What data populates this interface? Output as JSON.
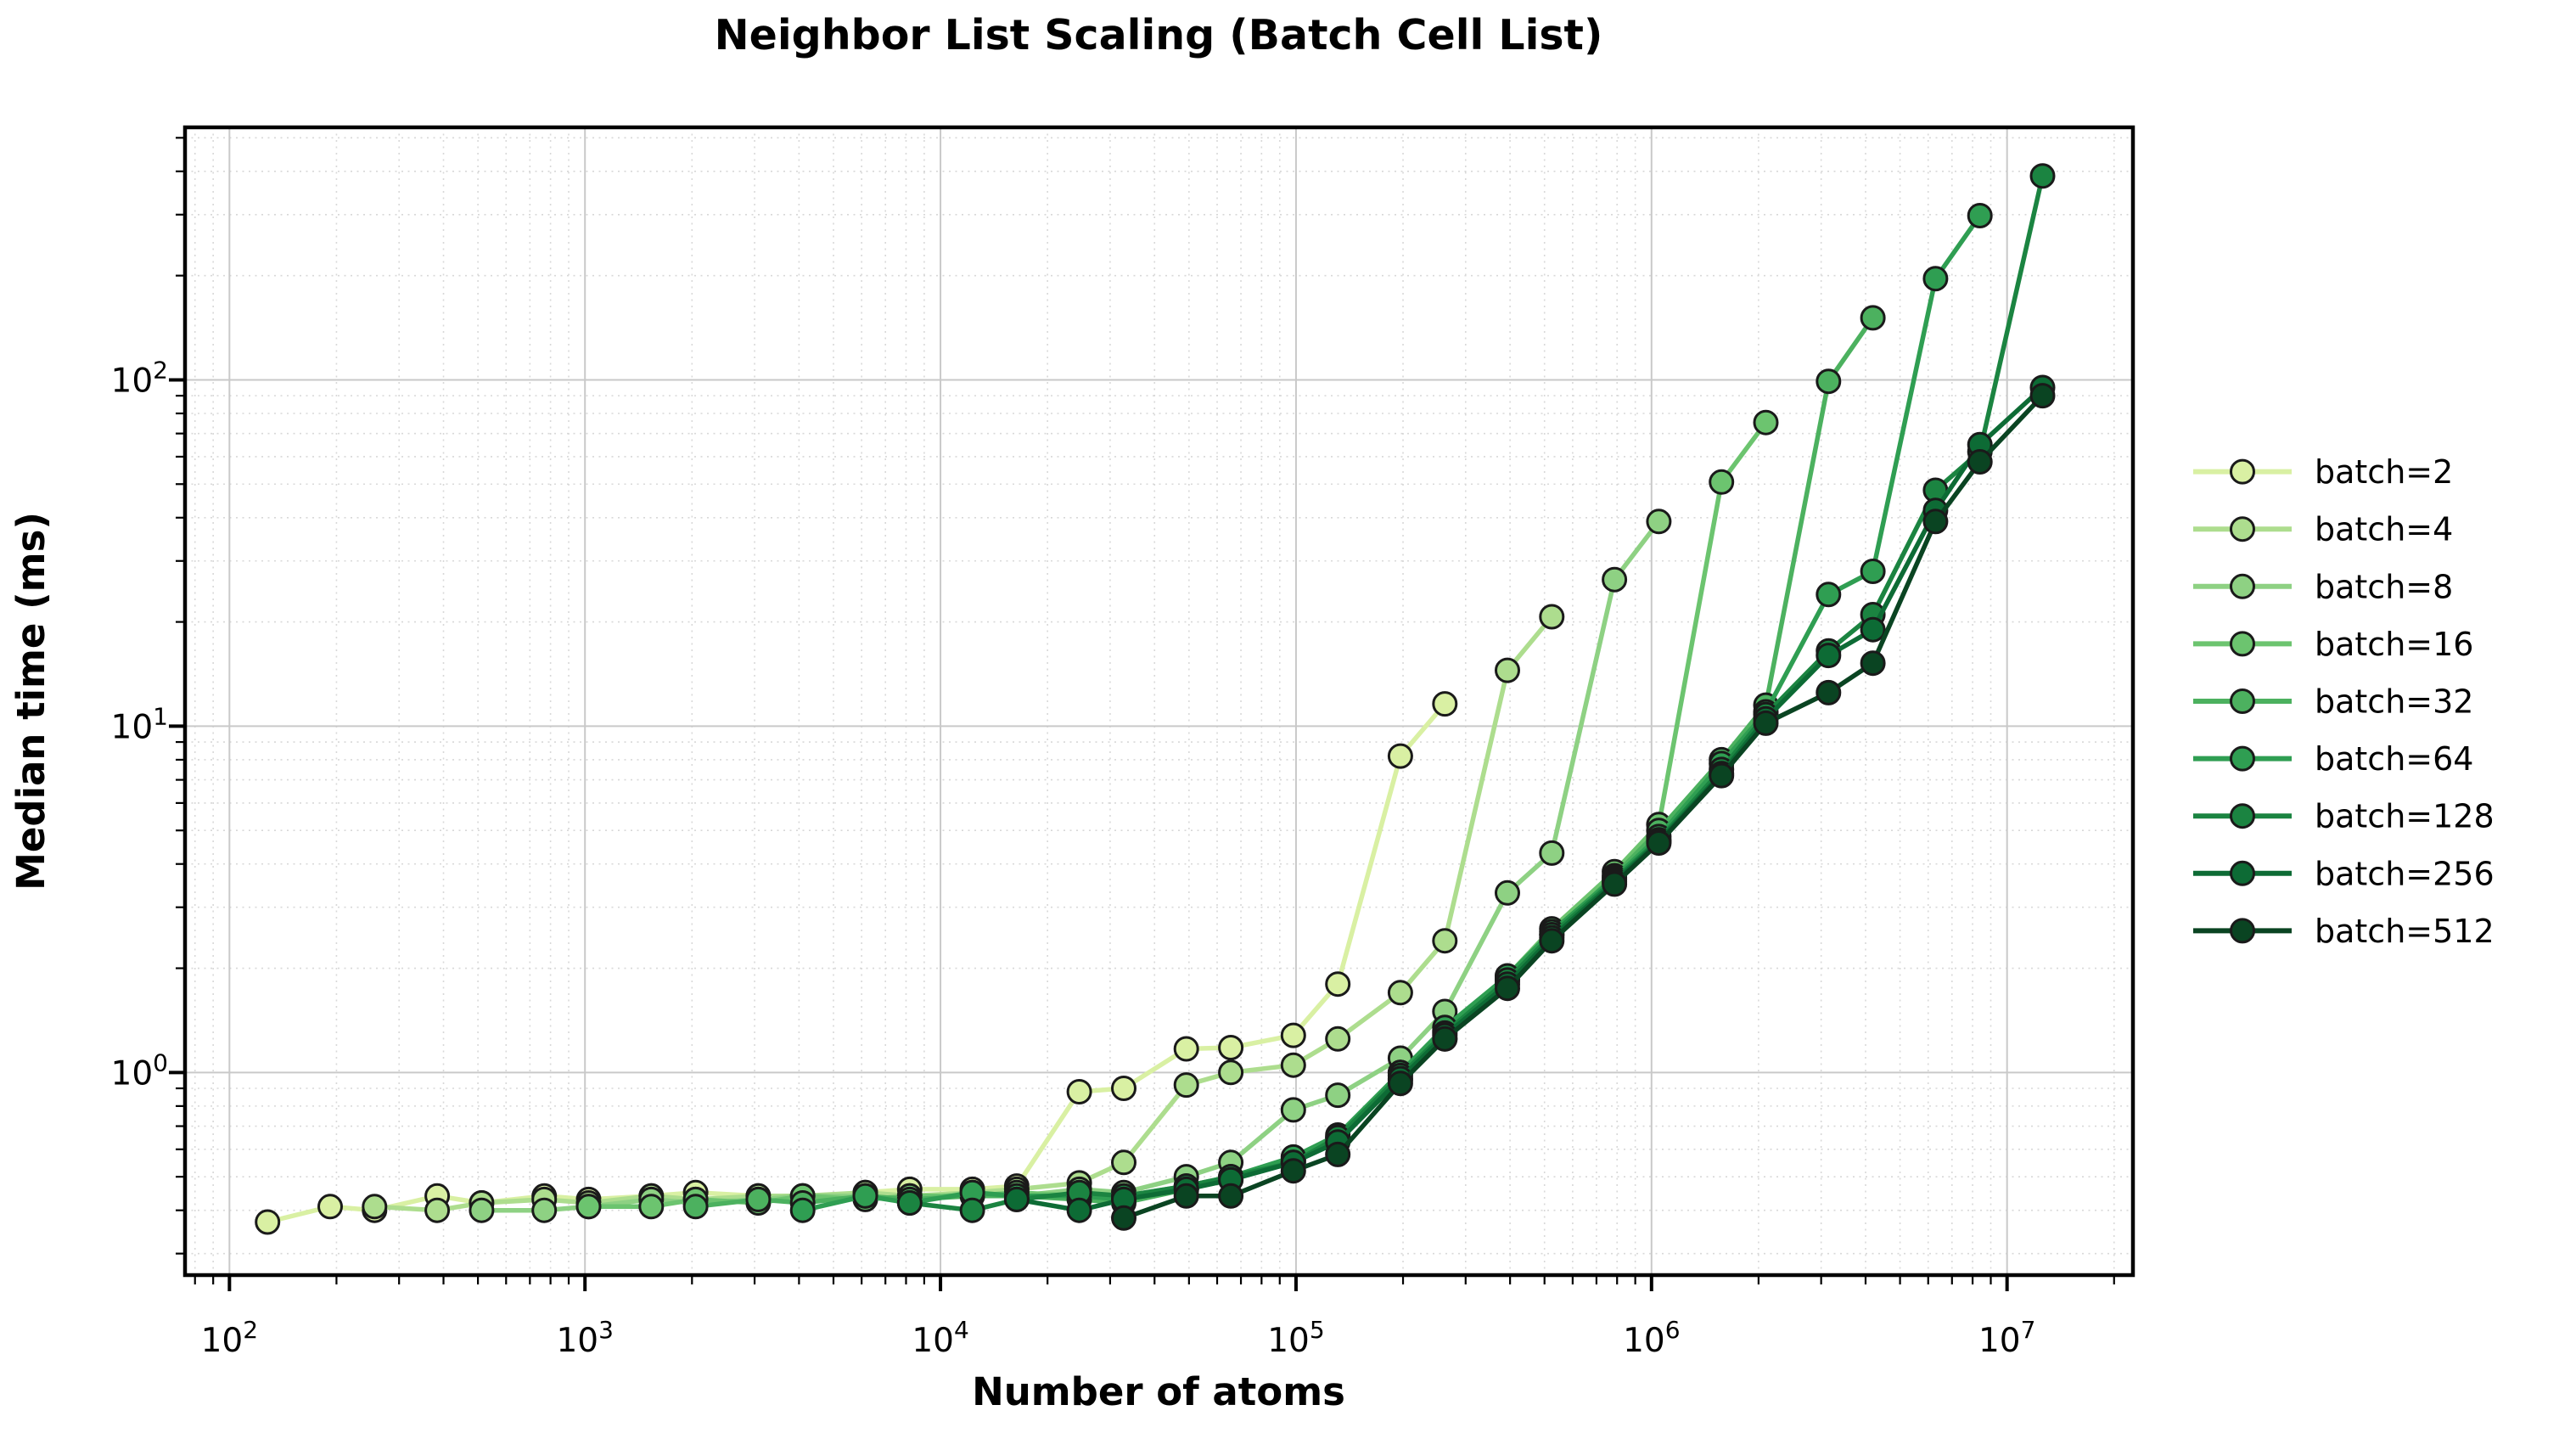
{
  "chart_data": {
    "type": "line",
    "title": "Neighbor List Scaling (Batch Cell List)",
    "xlabel": "Number of atoms",
    "ylabel": "Median time (ms)",
    "xscale": "log",
    "yscale": "log",
    "xlim": [
      75,
      22600000
    ],
    "ylim": [
      0.26,
      536
    ],
    "x_tick_exponents": [
      2,
      3,
      4,
      5,
      6,
      7
    ],
    "y_tick_exponents": [
      0,
      1,
      2
    ],
    "grid": {
      "major": "solid-gray",
      "minor": "dotted-gray"
    },
    "legend_position": "center right, outside plot",
    "tick_label_base": "10",
    "series": [
      {
        "name": "batch=2",
        "color": "#d9f0a3",
        "x": [
          128,
          192,
          256,
          384,
          512,
          768,
          1024,
          1536,
          2048,
          3072,
          4096,
          6144,
          8192,
          12288,
          16384,
          24576,
          32768,
          49152,
          65536,
          98304,
          131072,
          196608,
          262144
        ],
        "y": [
          0.37,
          0.41,
          0.4,
          0.44,
          0.42,
          0.44,
          0.43,
          0.44,
          0.45,
          0.44,
          0.43,
          0.45,
          0.46,
          0.46,
          0.47,
          0.88,
          0.9,
          1.17,
          1.18,
          1.28,
          1.8,
          8.2,
          11.6
        ]
      },
      {
        "name": "batch=4",
        "color": "#addd8e",
        "x": [
          256,
          384,
          512,
          768,
          1024,
          1536,
          2048,
          3072,
          4096,
          6144,
          8192,
          12288,
          16384,
          24576,
          32768,
          49152,
          65536,
          98304,
          131072,
          196608,
          262144,
          393216,
          524288
        ],
        "y": [
          0.41,
          0.4,
          0.42,
          0.43,
          0.42,
          0.44,
          0.43,
          0.44,
          0.44,
          0.45,
          0.44,
          0.45,
          0.46,
          0.48,
          0.55,
          0.92,
          1.0,
          1.05,
          1.25,
          1.7,
          2.4,
          14.5,
          20.7
        ]
      },
      {
        "name": "batch=8",
        "color": "#8ed183",
        "x": [
          512,
          768,
          1024,
          1536,
          2048,
          3072,
          4096,
          6144,
          8192,
          12288,
          16384,
          24576,
          32768,
          49152,
          65536,
          98304,
          131072,
          196608,
          262144,
          393216,
          524288,
          786432,
          1048576
        ],
        "y": [
          0.4,
          0.4,
          0.41,
          0.43,
          0.42,
          0.43,
          0.44,
          0.44,
          0.43,
          0.45,
          0.44,
          0.46,
          0.45,
          0.5,
          0.55,
          0.78,
          0.86,
          1.1,
          1.5,
          3.3,
          4.3,
          26.5,
          39.0
        ]
      },
      {
        "name": "batch=16",
        "color": "#6cc46f",
        "x": [
          1024,
          1536,
          2048,
          3072,
          4096,
          6144,
          8192,
          12288,
          16384,
          24576,
          32768,
          49152,
          65536,
          98304,
          131072,
          196608,
          262144,
          393216,
          524288,
          786432,
          1048576,
          1572864,
          2097152
        ],
        "y": [
          0.41,
          0.41,
          0.43,
          0.42,
          0.44,
          0.43,
          0.44,
          0.44,
          0.45,
          0.44,
          0.44,
          0.47,
          0.5,
          0.56,
          0.64,
          0.95,
          1.25,
          1.9,
          2.6,
          3.8,
          5.2,
          50.7,
          75.3
        ]
      },
      {
        "name": "batch=32",
        "color": "#4cb15f",
        "x": [
          2048,
          3072,
          4096,
          6144,
          8192,
          12288,
          16384,
          24576,
          32768,
          49152,
          65536,
          98304,
          131072,
          196608,
          262144,
          393216,
          524288,
          786432,
          1048576,
          1572864,
          2097152,
          3145728,
          4194304
        ],
        "y": [
          0.41,
          0.43,
          0.42,
          0.44,
          0.43,
          0.44,
          0.44,
          0.43,
          0.42,
          0.46,
          0.49,
          0.56,
          0.65,
          1.0,
          1.32,
          1.85,
          2.5,
          3.7,
          5.0,
          8.0,
          11.5,
          99,
          151
        ]
      },
      {
        "name": "batch=64",
        "color": "#2f9e52",
        "x": [
          4096,
          6144,
          8192,
          12288,
          16384,
          24576,
          32768,
          49152,
          65536,
          98304,
          131072,
          196608,
          262144,
          393216,
          524288,
          786432,
          1048576,
          1572864,
          2097152,
          3145728,
          4194304,
          6291456,
          8388608
        ],
        "y": [
          0.4,
          0.44,
          0.42,
          0.45,
          0.44,
          0.44,
          0.43,
          0.46,
          0.5,
          0.57,
          0.66,
          1.0,
          1.35,
          1.9,
          2.55,
          3.65,
          4.8,
          7.8,
          11.0,
          24,
          28,
          196,
          298
        ]
      },
      {
        "name": "batch=128",
        "color": "#1b8441",
        "x": [
          8192,
          12288,
          16384,
          24576,
          32768,
          49152,
          65536,
          98304,
          131072,
          196608,
          262144,
          393216,
          524288,
          786432,
          1048576,
          1572864,
          2097152,
          3145728,
          4194304,
          6291456,
          8388608,
          12582912
        ],
        "y": [
          0.42,
          0.4,
          0.43,
          0.45,
          0.44,
          0.47,
          0.5,
          0.55,
          0.65,
          0.98,
          1.3,
          1.85,
          2.5,
          3.6,
          4.7,
          7.5,
          10.8,
          16.5,
          21,
          48,
          62,
          388
        ]
      },
      {
        "name": "batch=256",
        "color": "#0d6b35",
        "x": [
          16384,
          24576,
          32768,
          49152,
          65536,
          98304,
          131072,
          196608,
          262144,
          393216,
          524288,
          786432,
          1048576,
          1572864,
          2097152,
          3145728,
          4194304,
          6291456,
          8388608,
          12582912
        ],
        "y": [
          0.43,
          0.4,
          0.43,
          0.46,
          0.49,
          0.55,
          0.63,
          0.96,
          1.28,
          1.8,
          2.45,
          3.55,
          4.65,
          7.3,
          10.5,
          16,
          19,
          42,
          65,
          95
        ]
      },
      {
        "name": "batch=512",
        "color": "#0a4422",
        "x": [
          32768,
          49152,
          65536,
          98304,
          131072,
          196608,
          262144,
          393216,
          524288,
          786432,
          1048576,
          1572864,
          2097152,
          3145728,
          4194304,
          6291456,
          8388608,
          12582912
        ],
        "y": [
          0.38,
          0.44,
          0.44,
          0.52,
          0.58,
          0.93,
          1.25,
          1.75,
          2.4,
          3.5,
          4.6,
          7.2,
          10.2,
          12.5,
          15.2,
          39,
          58,
          90
        ]
      }
    ]
  },
  "style": {
    "marker_edge_color": "#1a1a1a",
    "major_grid_color": "#c9c9c9",
    "minor_grid_color": "#d8d8d8",
    "spine_color": "#000000"
  }
}
